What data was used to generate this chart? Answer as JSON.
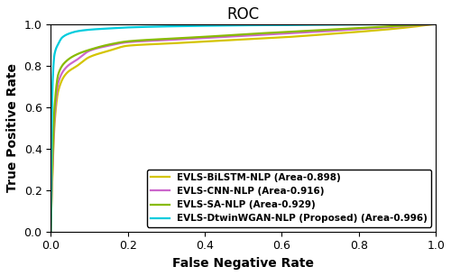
{
  "title": "ROC",
  "xlabel": "False Negative Rate",
  "ylabel": "True Positive Rate",
  "xlim": [
    0.0,
    1.0
  ],
  "ylim": [
    0.0,
    1.0
  ],
  "xticks": [
    0.0,
    0.2,
    0.4,
    0.6,
    0.8,
    1.0
  ],
  "yticks": [
    0.0,
    0.2,
    0.4,
    0.6,
    0.8,
    1.0
  ],
  "curves": [
    {
      "label": "EVLS-BiLSTM-NLP (Area-0.898)",
      "color": "#d4c400",
      "key_points": [
        [
          0.0,
          0.0
        ],
        [
          0.005,
          0.3
        ],
        [
          0.01,
          0.52
        ],
        [
          0.02,
          0.68
        ],
        [
          0.04,
          0.76
        ],
        [
          0.07,
          0.8
        ],
        [
          0.1,
          0.84
        ],
        [
          0.15,
          0.87
        ],
        [
          0.2,
          0.895
        ],
        [
          0.3,
          0.905
        ],
        [
          0.4,
          0.915
        ],
        [
          0.5,
          0.925
        ],
        [
          0.6,
          0.935
        ],
        [
          0.7,
          0.948
        ],
        [
          0.8,
          0.962
        ],
        [
          0.9,
          0.978
        ],
        [
          1.0,
          1.0
        ]
      ]
    },
    {
      "label": "EVLS-CNN-NLP (Area-0.916)",
      "color": "#cc66cc",
      "key_points": [
        [
          0.0,
          0.0
        ],
        [
          0.005,
          0.33
        ],
        [
          0.01,
          0.55
        ],
        [
          0.02,
          0.72
        ],
        [
          0.04,
          0.79
        ],
        [
          0.07,
          0.83
        ],
        [
          0.1,
          0.87
        ],
        [
          0.15,
          0.895
        ],
        [
          0.2,
          0.912
        ],
        [
          0.3,
          0.922
        ],
        [
          0.4,
          0.932
        ],
        [
          0.5,
          0.942
        ],
        [
          0.6,
          0.953
        ],
        [
          0.7,
          0.963
        ],
        [
          0.8,
          0.975
        ],
        [
          0.9,
          0.987
        ],
        [
          1.0,
          1.0
        ]
      ]
    },
    {
      "label": "EVLS-SA-NLP (Area-0.929)",
      "color": "#88bb00",
      "key_points": [
        [
          0.0,
          0.0
        ],
        [
          0.005,
          0.38
        ],
        [
          0.01,
          0.6
        ],
        [
          0.02,
          0.76
        ],
        [
          0.04,
          0.82
        ],
        [
          0.07,
          0.855
        ],
        [
          0.1,
          0.875
        ],
        [
          0.15,
          0.9
        ],
        [
          0.2,
          0.916
        ],
        [
          0.3,
          0.928
        ],
        [
          0.4,
          0.938
        ],
        [
          0.5,
          0.95
        ],
        [
          0.6,
          0.96
        ],
        [
          0.7,
          0.97
        ],
        [
          0.8,
          0.98
        ],
        [
          0.9,
          0.99
        ],
        [
          1.0,
          1.0
        ]
      ]
    },
    {
      "label": "EVLS-DtwinWGAN-NLP (Proposed) (Area-0.996)",
      "color": "#00ccdd",
      "key_points": [
        [
          0.0,
          0.0
        ],
        [
          0.005,
          0.72
        ],
        [
          0.01,
          0.855
        ],
        [
          0.02,
          0.905
        ],
        [
          0.03,
          0.935
        ],
        [
          0.05,
          0.955
        ],
        [
          0.07,
          0.965
        ],
        [
          0.1,
          0.972
        ],
        [
          0.15,
          0.978
        ],
        [
          0.2,
          0.983
        ],
        [
          0.3,
          0.988
        ],
        [
          0.5,
          0.993
        ],
        [
          0.7,
          0.996
        ],
        [
          0.9,
          0.998
        ],
        [
          1.0,
          1.0
        ]
      ]
    }
  ],
  "figsize": [
    5.0,
    3.06
  ],
  "dpi": 100,
  "title_fontsize": 12,
  "label_fontsize": 10,
  "tick_fontsize": 9,
  "legend_fontsize": 7.5,
  "linewidth": 1.6
}
